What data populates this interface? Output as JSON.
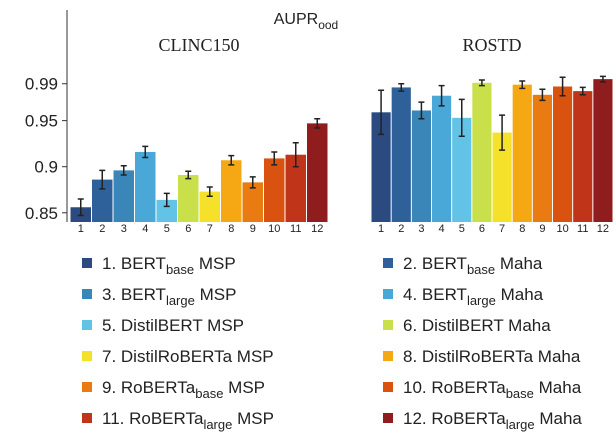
{
  "chart_data": {
    "type": "bar",
    "title": "AUPR",
    "title_sub": "ood",
    "panels": [
      "CLINC150",
      "ROSTD"
    ],
    "bar_labels": [
      "1",
      "2",
      "3",
      "4",
      "5",
      "6",
      "7",
      "8",
      "9",
      "10",
      "11",
      "12"
    ],
    "ylim": [
      0.84,
      1.07
    ],
    "yticks": [
      0.85,
      0.9,
      0.95,
      0.99
    ],
    "series": [
      {
        "name": "1. BERT",
        "name_sub": "base",
        "name_suffix": " MSP",
        "color": "#2b4a80",
        "values": [
          0.856,
          0.959
        ],
        "errors": [
          0.009,
          0.024
        ]
      },
      {
        "name": "2. BERT",
        "name_sub": "base",
        "name_suffix": " Maha",
        "color": "#2e6099",
        "values": [
          0.886,
          0.986
        ],
        "errors": [
          0.01,
          0.004
        ]
      },
      {
        "name": "3. BERT",
        "name_sub": "large",
        "name_suffix": " MSP",
        "color": "#3a86b8",
        "values": [
          0.896,
          0.961
        ],
        "errors": [
          0.005,
          0.009
        ]
      },
      {
        "name": "4. BERT",
        "name_sub": "large",
        "name_suffix": " Maha",
        "color": "#4aa8d8",
        "values": [
          0.916,
          0.977
        ],
        "errors": [
          0.006,
          0.011
        ]
      },
      {
        "name": "5. DistilBERT MSP",
        "color": "#62c3e6",
        "values": [
          0.864,
          0.953
        ],
        "errors": [
          0.007,
          0.02
        ]
      },
      {
        "name": "6. DistilBERT Maha",
        "color": "#c9e04a",
        "values": [
          0.891,
          0.991
        ],
        "errors": [
          0.004,
          0.003
        ]
      },
      {
        "name": "7. DistilRoBERTa MSP",
        "color": "#f5e02a",
        "values": [
          0.873,
          0.937
        ],
        "errors": [
          0.005,
          0.019
        ]
      },
      {
        "name": "8. DistilRoBERTa Maha",
        "color": "#f5a814",
        "values": [
          0.907,
          0.989
        ],
        "errors": [
          0.005,
          0.004
        ]
      },
      {
        "name": "9. RoBERTa",
        "name_sub": "base",
        "name_suffix": " MSP",
        "color": "#ea7a12",
        "values": [
          0.883,
          0.978
        ],
        "errors": [
          0.006,
          0.006
        ]
      },
      {
        "name": "10. RoBERTa",
        "name_sub": "base",
        "name_suffix": " Maha",
        "color": "#d9520f",
        "values": [
          0.909,
          0.987
        ],
        "errors": [
          0.007,
          0.01
        ]
      },
      {
        "name": "11. RoBERTa",
        "name_sub": "large",
        "name_suffix": " MSP",
        "color": "#c0341a",
        "values": [
          0.913,
          0.982
        ],
        "errors": [
          0.013,
          0.004
        ]
      },
      {
        "name": "12. RoBERTa",
        "name_sub": "large",
        "name_suffix": " Maha",
        "color": "#8f1d1d",
        "values": [
          0.947,
          0.995
        ],
        "errors": [
          0.005,
          0.003
        ]
      }
    ]
  }
}
